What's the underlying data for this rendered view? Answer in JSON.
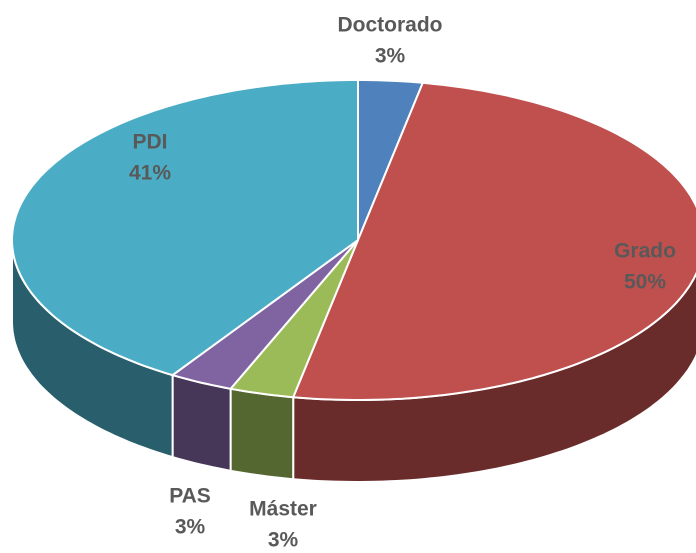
{
  "chart_data": {
    "type": "pie",
    "categories": [
      "Doctorado",
      "Grado",
      "Máster",
      "PAS",
      "PDI"
    ],
    "values": [
      3,
      50,
      3,
      3,
      41
    ],
    "value_labels": [
      "3%",
      "50%",
      "3%",
      "3%",
      "41%"
    ],
    "colors": [
      "#4f81bd",
      "#c0504d",
      "#9bbb59",
      "#8064a2",
      "#4bacc6"
    ]
  }
}
